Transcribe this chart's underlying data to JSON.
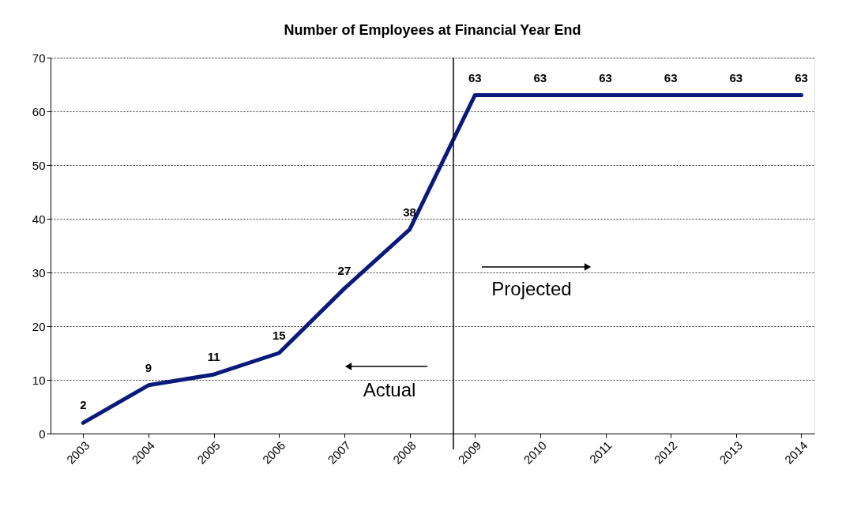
{
  "chart_data": {
    "type": "line",
    "title": "Number of Employees at Financial Year End",
    "x": [
      2003,
      2004,
      2005,
      2006,
      2007,
      2008,
      2009,
      2010,
      2011,
      2012,
      2013,
      2014
    ],
    "series": [
      {
        "color": "#0a1a7a",
        "values": [
          2,
          9,
          11,
          15,
          27,
          38,
          63,
          63,
          63,
          63,
          63,
          63
        ]
      }
    ],
    "data_labels": true,
    "xlim": [
      2002.5,
      2014.2
    ],
    "xticks": [
      2003,
      2004,
      2005,
      2006,
      2007,
      2008,
      2009,
      2010,
      2011,
      2012,
      2013,
      2014
    ],
    "ylim": [
      0,
      70
    ],
    "yticks": [
      0,
      10,
      20,
      30,
      40,
      50,
      60,
      70
    ],
    "grid": "y",
    "ref_lines": [
      {
        "axis": "x",
        "value": 2008.67,
        "color": "#000000"
      }
    ],
    "annotations": [
      "Projected",
      "Actual"
    ]
  }
}
